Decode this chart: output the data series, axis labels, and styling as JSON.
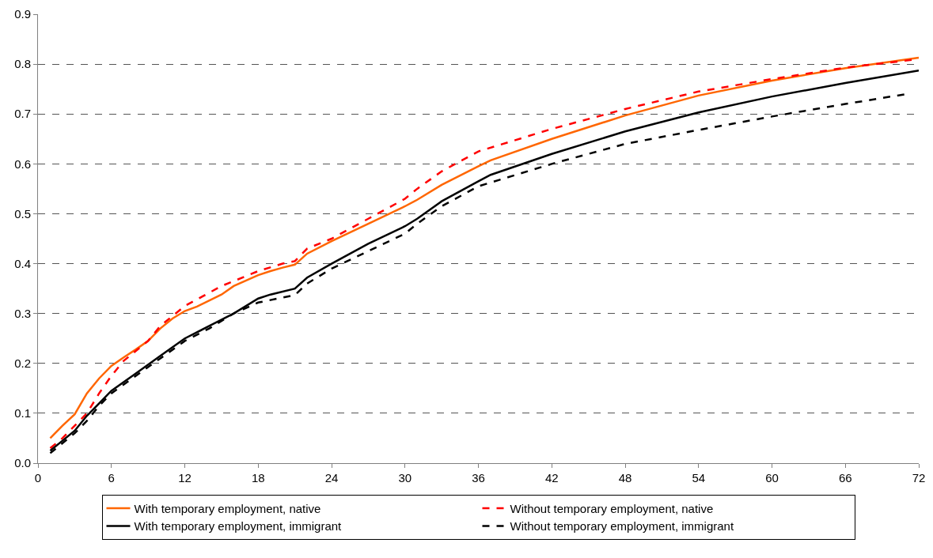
{
  "chart_data": {
    "type": "line",
    "xlim": [
      0,
      72
    ],
    "xticks": [
      0,
      6,
      12,
      18,
      24,
      30,
      36,
      42,
      48,
      54,
      60,
      66,
      72
    ],
    "ylim": [
      0,
      0.9
    ],
    "yticks": [
      {
        "value": 0,
        "label": "0.0"
      },
      0.1,
      0.2,
      0.3,
      0.4,
      0.5,
      0.6,
      0.7,
      0.8,
      0.9
    ],
    "grid": "y",
    "legend": "bottom",
    "marker": "none",
    "series": [
      {
        "name": "With temporary employment, native",
        "color": "#ff6600",
        "line_style": "solid",
        "x": [
          1,
          2,
          3,
          4,
          5,
          6,
          7,
          8,
          9,
          10,
          11,
          12,
          13,
          15,
          16,
          18,
          19,
          20,
          21,
          22,
          24,
          27,
          30,
          31,
          33,
          36,
          37,
          42,
          48,
          54,
          60,
          66,
          72
        ],
        "values": [
          0.05,
          0.075,
          0.098,
          0.14,
          0.17,
          0.195,
          0.212,
          0.228,
          0.245,
          0.27,
          0.29,
          0.305,
          0.314,
          0.338,
          0.355,
          0.377,
          0.385,
          0.392,
          0.398,
          0.42,
          0.445,
          0.48,
          0.515,
          0.528,
          0.558,
          0.595,
          0.607,
          0.65,
          0.697,
          0.737,
          0.767,
          0.792,
          0.813
        ]
      },
      {
        "name": "Without temporary employment, native",
        "color": "#ff0000",
        "line_style": "dashed",
        "x": [
          1,
          2,
          3,
          4,
          5,
          6,
          7,
          8,
          9,
          10,
          11,
          12,
          15,
          18,
          20,
          21,
          22,
          24,
          27,
          30,
          31,
          33,
          36,
          42,
          48,
          54,
          60,
          66,
          72
        ],
        "values": [
          0.03,
          0.05,
          0.075,
          0.1,
          0.14,
          0.175,
          0.205,
          0.225,
          0.245,
          0.275,
          0.295,
          0.315,
          0.355,
          0.385,
          0.4,
          0.405,
          0.43,
          0.45,
          0.49,
          0.53,
          0.55,
          0.585,
          0.625,
          0.67,
          0.71,
          0.745,
          0.77,
          0.793,
          0.81
        ]
      },
      {
        "name": "With temporary employment, immigrant",
        "color": "#000000",
        "line_style": "solid",
        "x": [
          1,
          2,
          3,
          4,
          5,
          6,
          8,
          10,
          12,
          14,
          16,
          18,
          19,
          21,
          22,
          24,
          27,
          30,
          31,
          33,
          36,
          37,
          42,
          48,
          54,
          60,
          66,
          72
        ],
        "values": [
          0.025,
          0.045,
          0.065,
          0.095,
          0.12,
          0.145,
          0.18,
          0.215,
          0.25,
          0.275,
          0.3,
          0.33,
          0.338,
          0.35,
          0.372,
          0.4,
          0.44,
          0.475,
          0.49,
          0.525,
          0.565,
          0.578,
          0.62,
          0.665,
          0.703,
          0.735,
          0.762,
          0.787
        ]
      },
      {
        "name": "Without temporary employment, immigrant",
        "color": "#000000",
        "line_style": "dashed",
        "x": [
          1,
          2,
          3,
          4,
          5,
          6,
          8,
          10,
          12,
          14,
          16,
          18,
          21,
          22,
          24,
          27,
          30,
          31,
          33,
          36,
          42,
          48,
          54,
          60,
          66,
          71
        ],
        "values": [
          0.02,
          0.04,
          0.06,
          0.085,
          0.115,
          0.14,
          0.175,
          0.21,
          0.245,
          0.27,
          0.3,
          0.322,
          0.337,
          0.36,
          0.39,
          0.425,
          0.46,
          0.48,
          0.515,
          0.555,
          0.6,
          0.64,
          0.668,
          0.695,
          0.72,
          0.74
        ]
      }
    ]
  }
}
